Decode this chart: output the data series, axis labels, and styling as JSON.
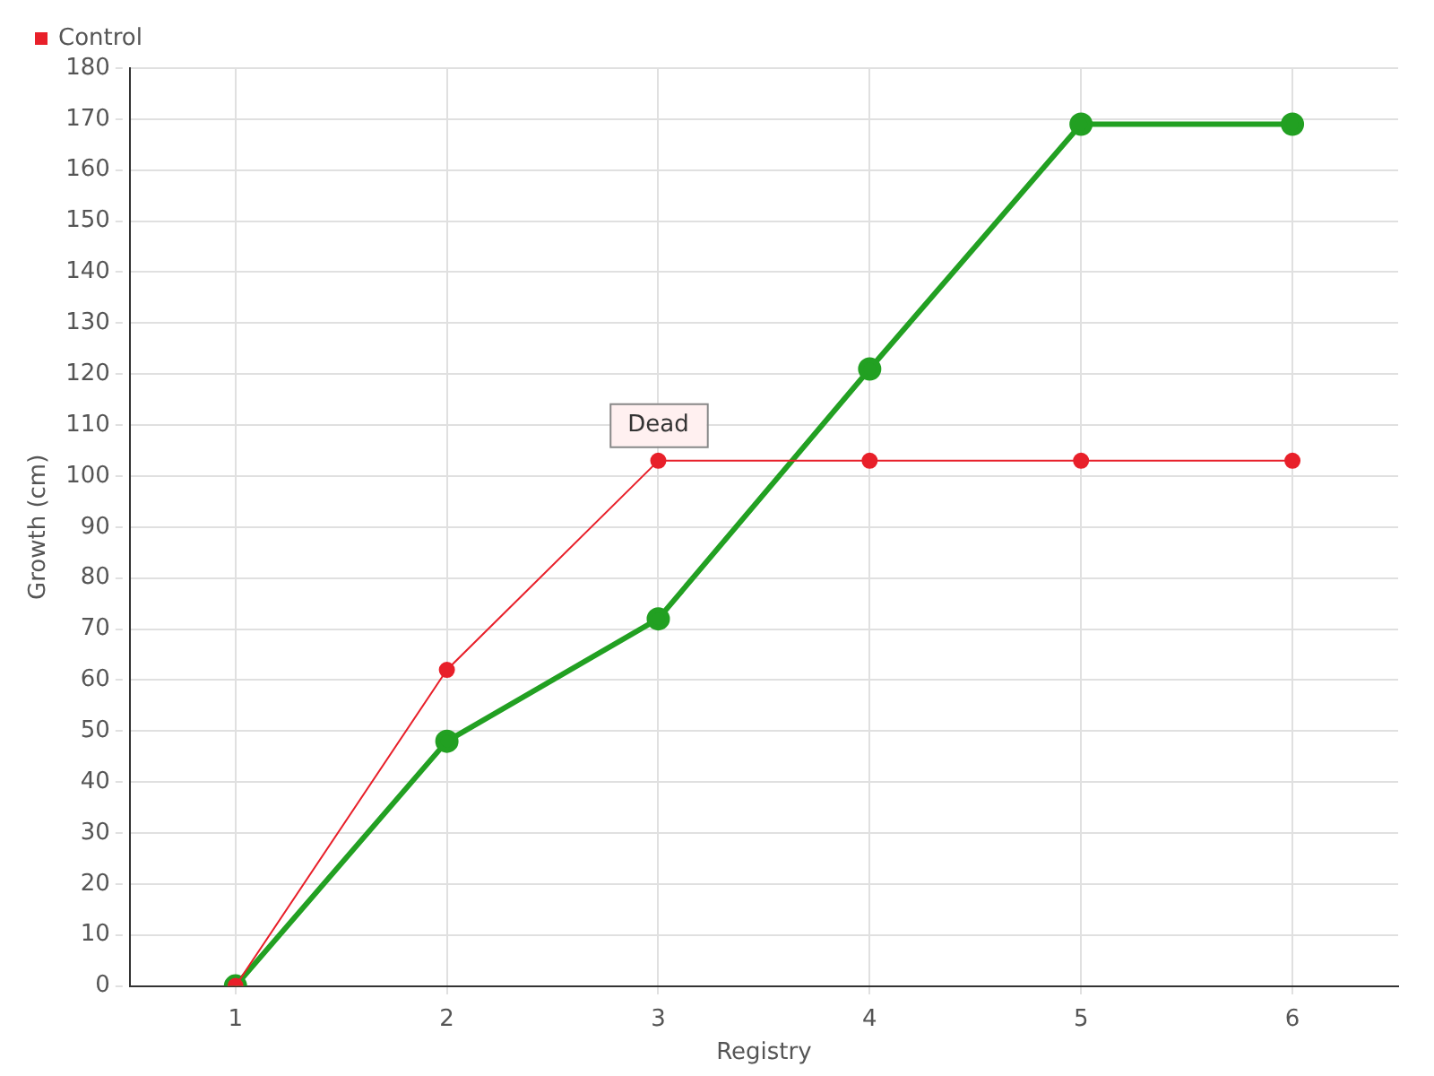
{
  "chart_data": {
    "type": "line",
    "xlabel": "Registry",
    "ylabel": "Growth (cm)",
    "x": [
      1,
      2,
      3,
      4,
      5,
      6
    ],
    "xlim": [
      0.5,
      6.5
    ],
    "xticks": [
      1,
      2,
      3,
      4,
      5,
      6
    ],
    "ylim": [
      0,
      180
    ],
    "yticks": [
      0,
      10,
      20,
      30,
      40,
      50,
      60,
      70,
      80,
      90,
      100,
      110,
      120,
      130,
      140,
      150,
      160,
      170,
      180
    ],
    "series": [
      {
        "color": "#22a022",
        "values": [
          0,
          48,
          72,
          121,
          169,
          169
        ]
      },
      {
        "name": "Control",
        "color": "#e8202a",
        "values": [
          0,
          62,
          103,
          103,
          103,
          103
        ]
      }
    ],
    "annotations": [
      {
        "text": "Dead",
        "x": 3,
        "y": 103
      }
    ],
    "grid": true,
    "legend": "top left",
    "marker": "circle",
    "line_style": "solid"
  }
}
